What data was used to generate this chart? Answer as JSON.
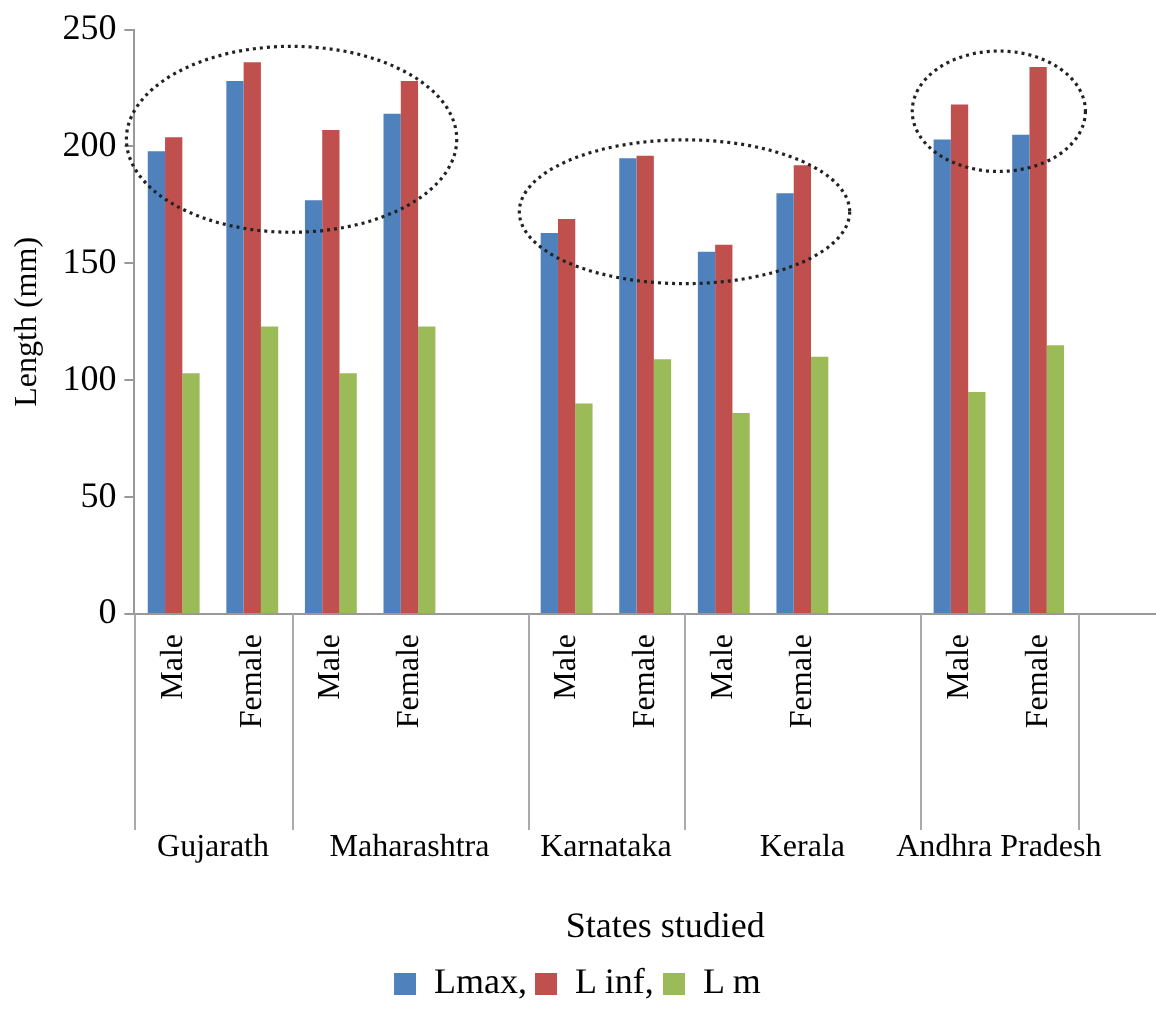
{
  "chart_data": {
    "type": "bar",
    "ylabel": "Length (mm)",
    "xlabel": "States studied",
    "categories": [
      "Male",
      "Female",
      "Male",
      "Female",
      null,
      "Male",
      "Female",
      "Male",
      "Female",
      null,
      "Male",
      "Female",
      null
    ],
    "annotations": [
      "Gujarath",
      "Maharashtra",
      "Karnataka",
      "Kerala",
      "Andhra Pradesh"
    ],
    "series": [
      {
        "name": "Lmax,",
        "color": "#4f81bd",
        "values": [
          198,
          228,
          177,
          214,
          null,
          163,
          195,
          155,
          180,
          null,
          203,
          205,
          null
        ]
      },
      {
        "name": "L inf,",
        "color": "#c0504d",
        "values": [
          204,
          236,
          207,
          228,
          null,
          169,
          196,
          158,
          192,
          null,
          218,
          234,
          null
        ]
      },
      {
        "name": "L m",
        "color": "#9bbb59",
        "values": [
          103,
          123,
          103,
          123,
          null,
          90,
          109,
          86,
          110,
          null,
          95,
          115,
          null
        ]
      }
    ],
    "ylim": [
      0,
      250
    ],
    "yticks": [
      0,
      50,
      100,
      150,
      200,
      250
    ],
    "grid": false,
    "legend": "bottom"
  }
}
